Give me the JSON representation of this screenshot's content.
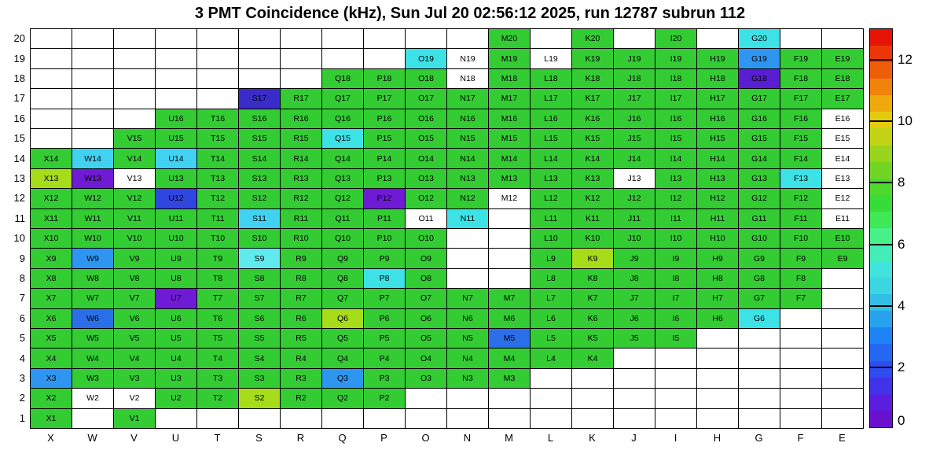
{
  "chart_data": {
    "type": "heatmap",
    "title": "3 PMT Coincidence (kHz), Sun Jul 20 02:56:12 2025, run 12787 subrun 112",
    "unit": "kHz",
    "columns": [
      "X",
      "W",
      "V",
      "U",
      "T",
      "S",
      "R",
      "Q",
      "P",
      "O",
      "N",
      "M",
      "L",
      "K",
      "J",
      "I",
      "H",
      "G",
      "F",
      "E"
    ],
    "row_min": 1,
    "row_max": 20,
    "colorbar": {
      "min": 0,
      "max": 13,
      "ticks": [
        0,
        2,
        4,
        6,
        8,
        10,
        12
      ],
      "palette_bottom_to_top": [
        "#6A11D0",
        "#5B1EDE",
        "#4033EA",
        "#2E4CF0",
        "#2566F2",
        "#1E84F5",
        "#27A3EE",
        "#31BFE8",
        "#3BD6E0",
        "#41E4DC",
        "#45EDB6",
        "#47F088",
        "#3FE855",
        "#38DC38",
        "#4ED92E",
        "#72D524",
        "#9AD41C",
        "#C2D315",
        "#E4C90F",
        "#F0A90C",
        "#F0840B",
        "#EE5E0A",
        "#EA3609",
        "#E51407"
      ]
    },
    "color_classes": {
      "g": {
        "hex": "#33CC33",
        "kHz": 7.0
      },
      "yg": {
        "hex": "#A6DC19",
        "kHz": 8.5
      },
      "c": {
        "hex": "#3CE2E6",
        "kHz": 4.6
      },
      "lc": {
        "hex": "#60EAEE",
        "kHz": 4.9
      },
      "cb": {
        "hex": "#41D2F2",
        "kHz": 4.1
      },
      "lb": {
        "hex": "#2E96F0",
        "kHz": 3.0
      },
      "b": {
        "hex": "#2B6FE8",
        "kHz": 2.4
      },
      "db": {
        "hex": "#3046E0",
        "kHz": 1.8
      },
      "nb": {
        "hex": "#3A2CC8",
        "kHz": 1.2
      },
      "bp": {
        "hex": "#5A1ED2",
        "kHz": 0.9
      },
      "p": {
        "hex": "#6F1AD4",
        "kHz": 0.6
      },
      "w": {
        "hex": "#FFFFFF",
        "kHz": 0
      }
    },
    "cells": [
      [
        "M20",
        "g"
      ],
      [
        "K20",
        "g"
      ],
      [
        "I20",
        "g"
      ],
      [
        "G20",
        "c"
      ],
      [
        "O19",
        "c"
      ],
      [
        "N19",
        "w"
      ],
      [
        "M19",
        "g"
      ],
      [
        "L19",
        "w"
      ],
      [
        "K19",
        "g"
      ],
      [
        "J19",
        "g"
      ],
      [
        "I19",
        "g"
      ],
      [
        "H19",
        "g"
      ],
      [
        "G19",
        "lb"
      ],
      [
        "F19",
        "g"
      ],
      [
        "E19",
        "g"
      ],
      [
        "Q18",
        "g"
      ],
      [
        "P18",
        "g"
      ],
      [
        "O18",
        "g"
      ],
      [
        "N18",
        "w"
      ],
      [
        "M18",
        "g"
      ],
      [
        "L18",
        "g"
      ],
      [
        "K18",
        "g"
      ],
      [
        "J18",
        "g"
      ],
      [
        "I18",
        "g"
      ],
      [
        "H18",
        "g"
      ],
      [
        "G18",
        "bp"
      ],
      [
        "F18",
        "g"
      ],
      [
        "E18",
        "g"
      ],
      [
        "S17",
        "nb"
      ],
      [
        "R17",
        "g"
      ],
      [
        "Q17",
        "g"
      ],
      [
        "P17",
        "g"
      ],
      [
        "O17",
        "g"
      ],
      [
        "N17",
        "g"
      ],
      [
        "M17",
        "g"
      ],
      [
        "L17",
        "g"
      ],
      [
        "K17",
        "g"
      ],
      [
        "J17",
        "g"
      ],
      [
        "I17",
        "g"
      ],
      [
        "H17",
        "g"
      ],
      [
        "G17",
        "g"
      ],
      [
        "F17",
        "g"
      ],
      [
        "E17",
        "g"
      ],
      [
        "U16",
        "g"
      ],
      [
        "T16",
        "g"
      ],
      [
        "S16",
        "g"
      ],
      [
        "R16",
        "g"
      ],
      [
        "Q16",
        "g"
      ],
      [
        "P16",
        "g"
      ],
      [
        "O16",
        "g"
      ],
      [
        "N16",
        "g"
      ],
      [
        "M16",
        "g"
      ],
      [
        "L16",
        "g"
      ],
      [
        "K16",
        "g"
      ],
      [
        "J16",
        "g"
      ],
      [
        "I16",
        "g"
      ],
      [
        "H16",
        "g"
      ],
      [
        "G16",
        "g"
      ],
      [
        "F16",
        "g"
      ],
      [
        "E16",
        "w"
      ],
      [
        "V15",
        "g"
      ],
      [
        "U15",
        "g"
      ],
      [
        "T15",
        "g"
      ],
      [
        "S15",
        "g"
      ],
      [
        "R15",
        "g"
      ],
      [
        "Q15",
        "c"
      ],
      [
        "P15",
        "g"
      ],
      [
        "O15",
        "g"
      ],
      [
        "N15",
        "g"
      ],
      [
        "M15",
        "g"
      ],
      [
        "L15",
        "g"
      ],
      [
        "K15",
        "g"
      ],
      [
        "J15",
        "g"
      ],
      [
        "I15",
        "g"
      ],
      [
        "H15",
        "g"
      ],
      [
        "G15",
        "g"
      ],
      [
        "F15",
        "g"
      ],
      [
        "E15",
        "w"
      ],
      [
        "X14",
        "g"
      ],
      [
        "W14",
        "cb"
      ],
      [
        "V14",
        "g"
      ],
      [
        "U14",
        "cb"
      ],
      [
        "T14",
        "g"
      ],
      [
        "S14",
        "g"
      ],
      [
        "R14",
        "g"
      ],
      [
        "Q14",
        "g"
      ],
      [
        "P14",
        "g"
      ],
      [
        "O14",
        "g"
      ],
      [
        "N14",
        "g"
      ],
      [
        "M14",
        "g"
      ],
      [
        "L14",
        "g"
      ],
      [
        "K14",
        "g"
      ],
      [
        "J14",
        "g"
      ],
      [
        "I14",
        "g"
      ],
      [
        "H14",
        "g"
      ],
      [
        "G14",
        "g"
      ],
      [
        "F14",
        "g"
      ],
      [
        "E14",
        "w"
      ],
      [
        "X13",
        "yg"
      ],
      [
        "W13",
        "p"
      ],
      [
        "V13",
        "w"
      ],
      [
        "U13",
        "g"
      ],
      [
        "T13",
        "g"
      ],
      [
        "S13",
        "g"
      ],
      [
        "R13",
        "g"
      ],
      [
        "Q13",
        "g"
      ],
      [
        "P13",
        "g"
      ],
      [
        "O13",
        "g"
      ],
      [
        "N13",
        "g"
      ],
      [
        "M13",
        "g"
      ],
      [
        "L13",
        "g"
      ],
      [
        "K13",
        "g"
      ],
      [
        "J13",
        "w"
      ],
      [
        "I13",
        "g"
      ],
      [
        "H13",
        "g"
      ],
      [
        "G13",
        "g"
      ],
      [
        "F13",
        "c"
      ],
      [
        "E13",
        "w"
      ],
      [
        "X12",
        "g"
      ],
      [
        "W12",
        "g"
      ],
      [
        "V12",
        "g"
      ],
      [
        "U12",
        "db"
      ],
      [
        "T12",
        "g"
      ],
      [
        "S12",
        "g"
      ],
      [
        "R12",
        "g"
      ],
      [
        "Q12",
        "g"
      ],
      [
        "P12",
        "p"
      ],
      [
        "O12",
        "g"
      ],
      [
        "N12",
        "g"
      ],
      [
        "M12",
        "w"
      ],
      [
        "L12",
        "g"
      ],
      [
        "K12",
        "g"
      ],
      [
        "J12",
        "g"
      ],
      [
        "I12",
        "g"
      ],
      [
        "H12",
        "g"
      ],
      [
        "G12",
        "g"
      ],
      [
        "F12",
        "g"
      ],
      [
        "E12",
        "w"
      ],
      [
        "X11",
        "g"
      ],
      [
        "W11",
        "g"
      ],
      [
        "V11",
        "g"
      ],
      [
        "U11",
        "g"
      ],
      [
        "T11",
        "g"
      ],
      [
        "S11",
        "cb"
      ],
      [
        "R11",
        "g"
      ],
      [
        "Q11",
        "g"
      ],
      [
        "P11",
        "g"
      ],
      [
        "O11",
        "w"
      ],
      [
        "N11",
        "c"
      ],
      [
        "L11",
        "g"
      ],
      [
        "K11",
        "g"
      ],
      [
        "J11",
        "g"
      ],
      [
        "I11",
        "g"
      ],
      [
        "H11",
        "g"
      ],
      [
        "G11",
        "g"
      ],
      [
        "F11",
        "g"
      ],
      [
        "E11",
        "w"
      ],
      [
        "X10",
        "g"
      ],
      [
        "W10",
        "g"
      ],
      [
        "V10",
        "g"
      ],
      [
        "U10",
        "g"
      ],
      [
        "T10",
        "g"
      ],
      [
        "S10",
        "g"
      ],
      [
        "R10",
        "g"
      ],
      [
        "Q10",
        "g"
      ],
      [
        "P10",
        "g"
      ],
      [
        "O10",
        "g"
      ],
      [
        "L10",
        "g"
      ],
      [
        "K10",
        "g"
      ],
      [
        "J10",
        "g"
      ],
      [
        "I10",
        "g"
      ],
      [
        "H10",
        "g"
      ],
      [
        "G10",
        "g"
      ],
      [
        "F10",
        "g"
      ],
      [
        "E10",
        "g"
      ],
      [
        "X9",
        "g"
      ],
      [
        "W9",
        "lb"
      ],
      [
        "V9",
        "g"
      ],
      [
        "U9",
        "g"
      ],
      [
        "T9",
        "g"
      ],
      [
        "S9",
        "lc"
      ],
      [
        "R9",
        "g"
      ],
      [
        "Q9",
        "g"
      ],
      [
        "P9",
        "g"
      ],
      [
        "O9",
        "g"
      ],
      [
        "L9",
        "g"
      ],
      [
        "K9",
        "yg"
      ],
      [
        "J9",
        "g"
      ],
      [
        "I9",
        "g"
      ],
      [
        "H9",
        "g"
      ],
      [
        "G9",
        "g"
      ],
      [
        "F9",
        "g"
      ],
      [
        "E9",
        "g"
      ],
      [
        "X8",
        "g"
      ],
      [
        "W8",
        "g"
      ],
      [
        "V8",
        "g"
      ],
      [
        "U8",
        "g"
      ],
      [
        "T8",
        "g"
      ],
      [
        "S8",
        "g"
      ],
      [
        "R8",
        "g"
      ],
      [
        "Q8",
        "g"
      ],
      [
        "P8",
        "c"
      ],
      [
        "O8",
        "g"
      ],
      [
        "L8",
        "g"
      ],
      [
        "K8",
        "g"
      ],
      [
        "J8",
        "g"
      ],
      [
        "I8",
        "g"
      ],
      [
        "H8",
        "g"
      ],
      [
        "G8",
        "g"
      ],
      [
        "F8",
        "g"
      ],
      [
        "X7",
        "g"
      ],
      [
        "W7",
        "g"
      ],
      [
        "V7",
        "g"
      ],
      [
        "U7",
        "p"
      ],
      [
        "T7",
        "g"
      ],
      [
        "S7",
        "g"
      ],
      [
        "R7",
        "g"
      ],
      [
        "Q7",
        "g"
      ],
      [
        "P7",
        "g"
      ],
      [
        "O7",
        "g"
      ],
      [
        "N7",
        "g"
      ],
      [
        "M7",
        "g"
      ],
      [
        "L7",
        "g"
      ],
      [
        "K7",
        "g"
      ],
      [
        "J7",
        "g"
      ],
      [
        "I7",
        "g"
      ],
      [
        "H7",
        "g"
      ],
      [
        "G7",
        "g"
      ],
      [
        "F7",
        "g"
      ],
      [
        "X6",
        "g"
      ],
      [
        "W6",
        "b"
      ],
      [
        "V6",
        "g"
      ],
      [
        "U6",
        "g"
      ],
      [
        "T6",
        "g"
      ],
      [
        "S6",
        "g"
      ],
      [
        "R6",
        "g"
      ],
      [
        "Q6",
        "yg"
      ],
      [
        "P6",
        "g"
      ],
      [
        "O6",
        "g"
      ],
      [
        "N6",
        "g"
      ],
      [
        "M6",
        "g"
      ],
      [
        "L6",
        "g"
      ],
      [
        "K6",
        "g"
      ],
      [
        "J6",
        "g"
      ],
      [
        "I6",
        "g"
      ],
      [
        "H6",
        "g"
      ],
      [
        "G6",
        "c"
      ],
      [
        "X5",
        "g"
      ],
      [
        "W5",
        "g"
      ],
      [
        "V5",
        "g"
      ],
      [
        "U5",
        "g"
      ],
      [
        "T5",
        "g"
      ],
      [
        "S5",
        "g"
      ],
      [
        "R5",
        "g"
      ],
      [
        "Q5",
        "g"
      ],
      [
        "P5",
        "g"
      ],
      [
        "O5",
        "g"
      ],
      [
        "N5",
        "g"
      ],
      [
        "M5",
        "b"
      ],
      [
        "L5",
        "g"
      ],
      [
        "K5",
        "g"
      ],
      [
        "J5",
        "g"
      ],
      [
        "I5",
        "g"
      ],
      [
        "X4",
        "g"
      ],
      [
        "W4",
        "g"
      ],
      [
        "V4",
        "g"
      ],
      [
        "U4",
        "g"
      ],
      [
        "T4",
        "g"
      ],
      [
        "S4",
        "g"
      ],
      [
        "R4",
        "g"
      ],
      [
        "Q4",
        "g"
      ],
      [
        "P4",
        "g"
      ],
      [
        "O4",
        "g"
      ],
      [
        "N4",
        "g"
      ],
      [
        "M4",
        "g"
      ],
      [
        "L4",
        "g"
      ],
      [
        "K4",
        "g"
      ],
      [
        "X3",
        "lb"
      ],
      [
        "W3",
        "g"
      ],
      [
        "V3",
        "g"
      ],
      [
        "U3",
        "g"
      ],
      [
        "T3",
        "g"
      ],
      [
        "S3",
        "g"
      ],
      [
        "R3",
        "g"
      ],
      [
        "Q3",
        "lb"
      ],
      [
        "P3",
        "g"
      ],
      [
        "O3",
        "g"
      ],
      [
        "N3",
        "g"
      ],
      [
        "M3",
        "g"
      ],
      [
        "X2",
        "g"
      ],
      [
        "W2",
        "w"
      ],
      [
        "V2",
        "w"
      ],
      [
        "U2",
        "g"
      ],
      [
        "T2",
        "g"
      ],
      [
        "S2",
        "yg"
      ],
      [
        "R2",
        "g"
      ],
      [
        "Q2",
        "g"
      ],
      [
        "P2",
        "g"
      ],
      [
        "X1",
        "g"
      ],
      [
        "V1",
        "g"
      ]
    ]
  }
}
